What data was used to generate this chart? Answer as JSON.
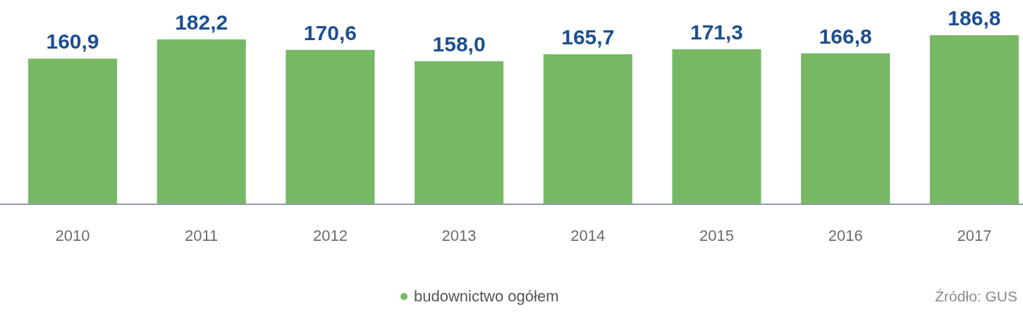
{
  "chart_data": {
    "type": "bar",
    "categories": [
      "2010",
      "2011",
      "2012",
      "2013",
      "2014",
      "2015",
      "2016",
      "2017"
    ],
    "series": [
      {
        "name": "budownictwo ogółem",
        "color": "#77b865",
        "values": [
          160.9,
          182.2,
          170.6,
          158.0,
          165.7,
          171.3,
          166.8,
          186.8
        ],
        "value_labels": [
          "160,9",
          "182,2",
          "170,6",
          "158,0",
          "165,7",
          "171,3",
          "166,8",
          "186,8"
        ]
      }
    ],
    "tick_labels": "x",
    "legend": "bottom",
    "annotations": [
      "Źródło: GUS"
    ]
  }
}
